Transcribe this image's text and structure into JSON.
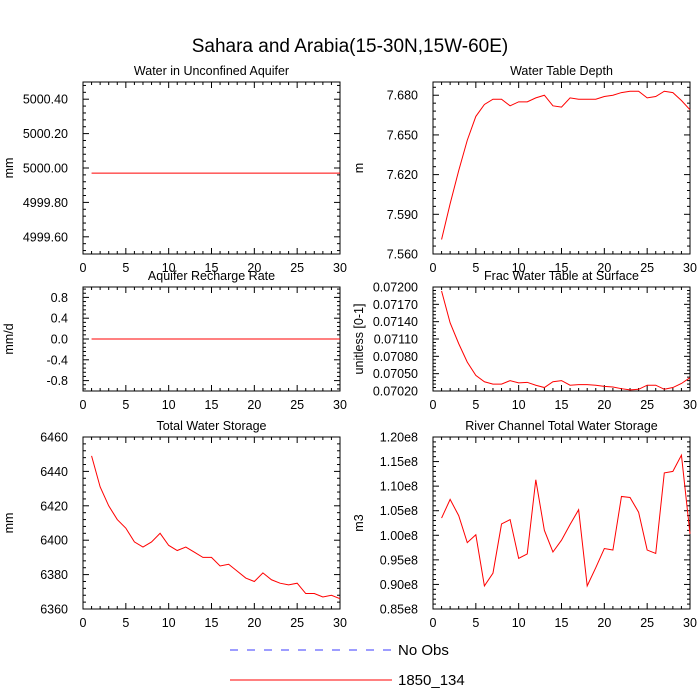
{
  "figure_title": "Sahara and Arabia(15-30N,15W-60E)",
  "legend": [
    {
      "label": "No Obs",
      "color": "#3b3bff",
      "dash": true
    },
    {
      "label": "1850_134",
      "color": "#ff0000",
      "dash": false
    }
  ],
  "chart_data": [
    {
      "type": "line",
      "title": "Water in Unconfined Aquifer",
      "ylabel": "mm",
      "xlim": [
        0,
        30
      ],
      "ylim": [
        4999.5,
        5000.5
      ],
      "xticks": [
        0,
        5,
        10,
        15,
        20,
        25,
        30
      ],
      "yticks": [
        4999.6,
        4999.8,
        5000.0,
        5000.2,
        5000.4
      ],
      "yticklabels": [
        "4999.60",
        "4999.80",
        "5000.00",
        "5000.20",
        "5000.40"
      ],
      "series": [
        {
          "name": "1850_134",
          "color": "#ff0000",
          "x": [
            1,
            2,
            3,
            4,
            5,
            6,
            7,
            8,
            9,
            10,
            11,
            12,
            13,
            14,
            15,
            16,
            17,
            18,
            19,
            20,
            21,
            22,
            23,
            24,
            25,
            26,
            27,
            28,
            29,
            30
          ],
          "y": [
            4999.97,
            4999.97,
            4999.97,
            4999.97,
            4999.97,
            4999.97,
            4999.97,
            4999.97,
            4999.97,
            4999.97,
            4999.97,
            4999.97,
            4999.97,
            4999.97,
            4999.97,
            4999.97,
            4999.97,
            4999.97,
            4999.97,
            4999.97,
            4999.97,
            4999.97,
            4999.97,
            4999.97,
            4999.97,
            4999.97,
            4999.97,
            4999.97,
            4999.97,
            4999.97
          ]
        }
      ]
    },
    {
      "type": "line",
      "title": "Water Table Depth",
      "ylabel": "m",
      "xlim": [
        0,
        30
      ],
      "ylim": [
        7.56,
        7.69
      ],
      "xticks": [
        0,
        5,
        10,
        15,
        20,
        25,
        30
      ],
      "yticks": [
        7.56,
        7.59,
        7.62,
        7.65,
        7.68
      ],
      "yticklabels": [
        "7.560",
        "7.590",
        "7.620",
        "7.650",
        "7.680"
      ],
      "series": [
        {
          "name": "1850_134",
          "color": "#ff0000",
          "x": [
            1,
            2,
            3,
            4,
            5,
            6,
            7,
            8,
            9,
            10,
            11,
            12,
            13,
            14,
            15,
            16,
            17,
            18,
            19,
            20,
            21,
            22,
            23,
            24,
            25,
            26,
            27,
            28,
            29,
            30
          ],
          "y": [
            7.571,
            7.598,
            7.623,
            7.646,
            7.664,
            7.673,
            7.677,
            7.677,
            7.672,
            7.675,
            7.675,
            7.678,
            7.68,
            7.672,
            7.671,
            7.678,
            7.677,
            7.677,
            7.677,
            7.679,
            7.68,
            7.682,
            7.683,
            7.683,
            7.678,
            7.679,
            7.683,
            7.682,
            7.676,
            7.669
          ]
        }
      ]
    },
    {
      "type": "line",
      "title": "Aquifer Recharge Rate",
      "ylabel": "mm/d",
      "xlim": [
        0,
        30
      ],
      "ylim": [
        -1.0,
        1.0
      ],
      "xticks": [
        0,
        5,
        10,
        15,
        20,
        25,
        30
      ],
      "yticks": [
        -0.8,
        -0.4,
        0.0,
        0.4,
        0.8
      ],
      "yticklabels": [
        "-0.8",
        "-0.4",
        "0.0",
        "0.4",
        "0.8"
      ],
      "series": [
        {
          "name": "1850_134",
          "color": "#ff0000",
          "x": [
            1,
            2,
            3,
            4,
            5,
            6,
            7,
            8,
            9,
            10,
            11,
            12,
            13,
            14,
            15,
            16,
            17,
            18,
            19,
            20,
            21,
            22,
            23,
            24,
            25,
            26,
            27,
            28,
            29,
            30
          ],
          "y": [
            0,
            0,
            0,
            0,
            0,
            0,
            0,
            0,
            0,
            0,
            0,
            0,
            0,
            0,
            0,
            0,
            0,
            0,
            0,
            0,
            0,
            0,
            0,
            0,
            0,
            0,
            0,
            0,
            0,
            0
          ]
        }
      ]
    },
    {
      "type": "line",
      "title": "Frac Water Table at Surface",
      "ylabel": "unitless [0-1]",
      "xlim": [
        0,
        30
      ],
      "ylim": [
        0.0702,
        0.072
      ],
      "xticks": [
        0,
        5,
        10,
        15,
        20,
        25,
        30
      ],
      "yticks": [
        0.0702,
        0.0705,
        0.0708,
        0.0711,
        0.0714,
        0.0717,
        0.072
      ],
      "yticklabels": [
        "0.07020",
        "0.07050",
        "0.07080",
        "0.07110",
        "0.07140",
        "0.07170",
        "0.07200"
      ],
      "series": [
        {
          "name": "1850_134",
          "color": "#ff0000",
          "x": [
            1,
            2,
            3,
            4,
            5,
            6,
            7,
            8,
            9,
            10,
            11,
            12,
            13,
            14,
            15,
            16,
            17,
            18,
            19,
            20,
            21,
            22,
            23,
            24,
            25,
            26,
            27,
            28,
            29,
            30
          ],
          "y": [
            0.07193,
            0.07138,
            0.07102,
            0.0707,
            0.07047,
            0.07036,
            0.07032,
            0.07032,
            0.07038,
            0.07034,
            0.07035,
            0.0703,
            0.07026,
            0.07036,
            0.07038,
            0.0703,
            0.07031,
            0.07031,
            0.0703,
            0.07028,
            0.07027,
            0.07024,
            0.07022,
            0.07023,
            0.0703,
            0.0703,
            0.07023,
            0.07026,
            0.07033,
            0.07043
          ]
        }
      ]
    },
    {
      "type": "line",
      "title": "Total Water Storage",
      "ylabel": "mm",
      "xlim": [
        0,
        30
      ],
      "ylim": [
        6360,
        6460
      ],
      "xticks": [
        0,
        5,
        10,
        15,
        20,
        25,
        30
      ],
      "yticks": [
        6360,
        6380,
        6400,
        6420,
        6440,
        6460
      ],
      "yticklabels": [
        "6360",
        "6380",
        "6400",
        "6420",
        "6440",
        "6460"
      ],
      "series": [
        {
          "name": "1850_134",
          "color": "#ff0000",
          "x": [
            1,
            2,
            3,
            4,
            5,
            6,
            7,
            8,
            9,
            10,
            11,
            12,
            13,
            14,
            15,
            16,
            17,
            18,
            19,
            20,
            21,
            22,
            23,
            24,
            25,
            26,
            27,
            28,
            29,
            30
          ],
          "y": [
            6449,
            6431,
            6420,
            6412,
            6407,
            6399,
            6396,
            6399,
            6404,
            6397,
            6394,
            6396,
            6393,
            6390,
            6390,
            6385,
            6386,
            6382,
            6378,
            6376,
            6381,
            6377,
            6375,
            6374,
            6375,
            6369,
            6369,
            6367,
            6368,
            6366
          ]
        }
      ]
    },
    {
      "type": "line",
      "title": "River Channel Total Water Storage",
      "ylabel": "m3",
      "xlim": [
        0,
        30
      ],
      "ylim": [
        85000000.0,
        120000000.0
      ],
      "xticks": [
        0,
        5,
        10,
        15,
        20,
        25,
        30
      ],
      "yticks": [
        85000000.0,
        90000000.0,
        95000000.0,
        100000000.0,
        105000000.0,
        110000000.0,
        115000000.0,
        120000000.0
      ],
      "yticklabels": [
        "0.85e8",
        "0.90e8",
        "0.95e8",
        "1.00e8",
        "1.05e8",
        "1.10e8",
        "1.15e8",
        "1.20e8"
      ],
      "series": [
        {
          "name": "1850_134",
          "color": "#ff0000",
          "x": [
            1,
            2,
            3,
            4,
            5,
            6,
            7,
            8,
            9,
            10,
            11,
            12,
            13,
            14,
            15,
            16,
            17,
            18,
            19,
            20,
            21,
            22,
            23,
            24,
            25,
            26,
            27,
            28,
            29,
            30
          ],
          "y": [
            103500000.0,
            107300000.0,
            104000000.0,
            98500000.0,
            100100000.0,
            89700000.0,
            92300000.0,
            102300000.0,
            103200000.0,
            95300000.0,
            96200000.0,
            111300000.0,
            101000000.0,
            96600000.0,
            99000000.0,
            102200000.0,
            105200000.0,
            89700000.0,
            93400000.0,
            97300000.0,
            97000000.0,
            107900000.0,
            107700000.0,
            104700000.0,
            97000000.0,
            96300000.0,
            112700000.0,
            113000000.0,
            116300000.0,
            100300000.0
          ]
        }
      ]
    }
  ]
}
